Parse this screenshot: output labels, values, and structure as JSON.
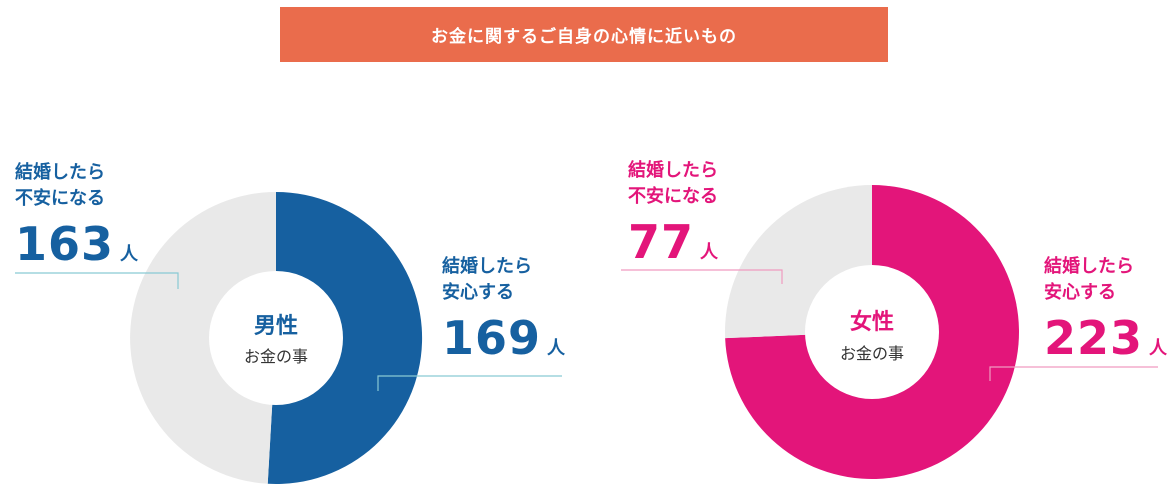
{
  "banner": {
    "title": "お金に関するご自身の心情に近いもの"
  },
  "colors": {
    "banner": "#ea6c4c",
    "male": "#1660a0",
    "female": "#e3157a",
    "rest": "#e9e9e9",
    "male_leader": "#89c9d4",
    "female_leader": "#f09bc0"
  },
  "chart_data": [
    {
      "type": "pie",
      "center_title": "男性",
      "center_subtitle": "お金の事",
      "slices": [
        {
          "label": "結婚したら 安心する",
          "label_line1": "結婚したら",
          "label_line2": "安心する",
          "value": 169,
          "unit": "人"
        },
        {
          "label": "結婚したら 不安になる",
          "label_line1": "結婚したら",
          "label_line2": "不安になる",
          "value": 163,
          "unit": "人"
        }
      ]
    },
    {
      "type": "pie",
      "center_title": "女性",
      "center_subtitle": "お金の事",
      "slices": [
        {
          "label": "結婚したら 安心する",
          "label_line1": "結婚したら",
          "label_line2": "安心する",
          "value": 223,
          "unit": "人"
        },
        {
          "label": "結婚したら 不安になる",
          "label_line1": "結婚したら",
          "label_line2": "不安になる",
          "value": 77,
          "unit": "人"
        }
      ]
    }
  ]
}
